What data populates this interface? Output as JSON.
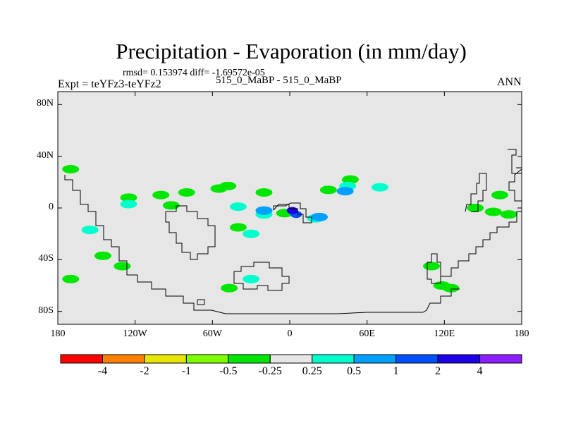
{
  "chart_data": {
    "type": "heatmap",
    "title": "Precipitation - Evaporation (in mm/day)",
    "stats": "rmsd= 0.153974 diff= -1.69572e-05",
    "left_label": "Expt = teYFz3-teYFz2",
    "center_label": "515_0_MaBP - 515_0_MaBP",
    "right_label": "ANN",
    "xlim": [
      -180,
      180
    ],
    "ylim": [
      -90,
      90
    ],
    "x_ticks": [
      {
        "value": -180,
        "label": "180"
      },
      {
        "value": -120,
        "label": "120W"
      },
      {
        "value": -60,
        "label": "60W"
      },
      {
        "value": 0,
        "label": "0"
      },
      {
        "value": 60,
        "label": "60E"
      },
      {
        "value": 120,
        "label": "120E"
      },
      {
        "value": 180,
        "label": "180"
      }
    ],
    "y_ticks": [
      {
        "value": 80,
        "label": "80N"
      },
      {
        "value": 40,
        "label": "40N"
      },
      {
        "value": 0,
        "label": "0"
      },
      {
        "value": -40,
        "label": "40S"
      },
      {
        "value": -80,
        "label": "80S"
      }
    ],
    "colorbar": {
      "colors": [
        "#ff0000",
        "#ff8000",
        "#e6e600",
        "#80ff00",
        "#00e600",
        "#e6e6e6",
        "#00ffcc",
        "#00a0ff",
        "#0050ff",
        "#1e00e6",
        "#8c1eff"
      ],
      "boundaries": [
        "-4",
        "-2",
        "-1",
        "-0.5",
        "-0.25",
        "0.25",
        "0.5",
        "1",
        "2",
        "4"
      ]
    },
    "background_color": "#e6e6e6",
    "anomalies": [
      {
        "lon": -125,
        "lat": 8,
        "level": "-0.5..-0.25"
      },
      {
        "lon": -100,
        "lat": 10,
        "level": "-0.5..-0.25"
      },
      {
        "lon": -80,
        "lat": 12,
        "level": "-0.5..-0.25"
      },
      {
        "lon": -55,
        "lat": 15,
        "level": "-0.5..-0.25"
      },
      {
        "lon": -48,
        "lat": 17,
        "level": "-0.5..-0.25"
      },
      {
        "lon": -170,
        "lat": 30,
        "level": "-0.5..-0.25"
      },
      {
        "lon": -92,
        "lat": 2,
        "level": "-0.5..-0.25"
      },
      {
        "lon": -20,
        "lat": 12,
        "level": "-0.5..-0.25"
      },
      {
        "lon": 30,
        "lat": 14,
        "level": "-0.5..-0.25"
      },
      {
        "lon": 47,
        "lat": 22,
        "level": "-0.5..-0.25"
      },
      {
        "lon": -4,
        "lat": -4,
        "level": "-0.5..-0.25"
      },
      {
        "lon": -40,
        "lat": -15,
        "level": "-0.5..-0.25"
      },
      {
        "lon": -145,
        "lat": -37,
        "level": "-0.5..-0.25"
      },
      {
        "lon": -170,
        "lat": -55,
        "level": "-0.5..-0.25"
      },
      {
        "lon": -130,
        "lat": -45,
        "level": "-0.5..-0.25"
      },
      {
        "lon": 163,
        "lat": 10,
        "level": "-0.5..-0.25"
      },
      {
        "lon": 170,
        "lat": -5,
        "level": "-0.5..-0.25"
      },
      {
        "lon": 144,
        "lat": 0,
        "level": "-0.5..-0.25"
      },
      {
        "lon": 158,
        "lat": -3,
        "level": "-0.5..-0.25"
      },
      {
        "lon": 118,
        "lat": -60,
        "level": "-0.5..-0.25"
      },
      {
        "lon": 125,
        "lat": -62,
        "level": "-0.5..-0.25"
      },
      {
        "lon": 110,
        "lat": -45,
        "level": "-0.5..-0.25"
      },
      {
        "lon": -47,
        "lat": -62,
        "level": "-0.5..-0.25"
      },
      {
        "lon": -125,
        "lat": 3,
        "level": "0.25..0.5"
      },
      {
        "lon": -40,
        "lat": 1,
        "level": "0.25..0.5"
      },
      {
        "lon": -20,
        "lat": -5,
        "level": "0.25..0.5"
      },
      {
        "lon": 20,
        "lat": -8,
        "level": "0.25..0.5"
      },
      {
        "lon": 45,
        "lat": 17,
        "level": "0.25..0.5"
      },
      {
        "lon": 70,
        "lat": 16,
        "level": "0.25..0.5"
      },
      {
        "lon": -155,
        "lat": -17,
        "level": "0.25..0.5"
      },
      {
        "lon": -30,
        "lat": -55,
        "level": "0.25..0.5"
      },
      {
        "lon": -30,
        "lat": -20,
        "level": "0.25..0.5"
      },
      {
        "lon": 5,
        "lat": -5,
        "level": "1..2"
      },
      {
        "lon": 2,
        "lat": -2,
        "level": "2..4"
      },
      {
        "lon": 23,
        "lat": -7,
        "level": "0.5..1"
      },
      {
        "lon": 43,
        "lat": 13,
        "level": "0.5..1"
      },
      {
        "lon": -20,
        "lat": -2,
        "level": "0.5..1"
      }
    ]
  }
}
